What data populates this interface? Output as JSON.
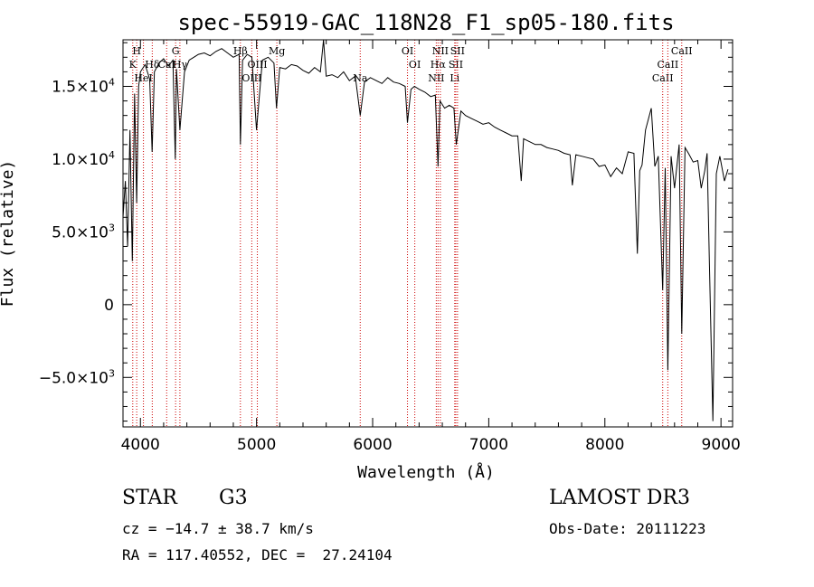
{
  "chart_data": {
    "type": "line",
    "title": "spec-55919-GAC_118N28_F1_sp05-180.fits",
    "xlabel": "Wavelength (Å)",
    "ylabel": "Flux (relative)",
    "xlim": [
      3850,
      9100
    ],
    "ylim": [
      -8400,
      18200
    ],
    "x_ticks": [
      {
        "value": 4000,
        "label": "4000"
      },
      {
        "value": 5000,
        "label": "5000"
      },
      {
        "value": 6000,
        "label": "6000"
      },
      {
        "value": 7000,
        "label": "7000"
      },
      {
        "value": 8000,
        "label": "8000"
      },
      {
        "value": 9000,
        "label": "9000"
      }
    ],
    "y_ticks": [
      {
        "value": -5000,
        "label": "−5.0×10",
        "exp": "3"
      },
      {
        "value": 0,
        "label": "0",
        "exp": ""
      },
      {
        "value": 5000,
        "label": "5.0×10",
        "exp": "3"
      },
      {
        "value": 10000,
        "label": "1.0×10",
        "exp": "4"
      },
      {
        "value": 15000,
        "label": "1.5×10",
        "exp": "4"
      }
    ],
    "series": [
      {
        "name": "spectrum",
        "color": "#000000",
        "x": [
          3850,
          3870,
          3890,
          3910,
          3930,
          3950,
          3968,
          3985,
          4000,
          4040,
          4080,
          4101,
          4120,
          4160,
          4200,
          4240,
          4280,
          4300,
          4310,
          4340,
          4380,
          4420,
          4460,
          4500,
          4550,
          4600,
          4650,
          4700,
          4750,
          4800,
          4850,
          4861,
          4880,
          4920,
          4960,
          5000,
          5050,
          5100,
          5150,
          5172,
          5200,
          5250,
          5300,
          5350,
          5400,
          5450,
          5500,
          5550,
          5577,
          5600,
          5650,
          5700,
          5750,
          5800,
          5850,
          5893,
          5930,
          5980,
          6030,
          6080,
          6130,
          6180,
          6230,
          6280,
          6300,
          6330,
          6360,
          6400,
          6450,
          6500,
          6540,
          6563,
          6580,
          6620,
          6660,
          6700,
          6720,
          6760,
          6800,
          6850,
          6900,
          6950,
          7000,
          7050,
          7100,
          7150,
          7200,
          7250,
          7280,
          7300,
          7350,
          7400,
          7450,
          7500,
          7550,
          7600,
          7650,
          7700,
          7720,
          7750,
          7800,
          7850,
          7900,
          7950,
          8000,
          8050,
          8100,
          8150,
          8200,
          8250,
          8280,
          8300,
          8320,
          8350,
          8400,
          8430,
          8460,
          8498,
          8520,
          8542,
          8570,
          8600,
          8640,
          8662,
          8690,
          8720,
          8760,
          8800,
          8830,
          8860,
          8880,
          8900,
          8930,
          8960,
          8990,
          9030,
          9060
        ],
        "y": [
          6000,
          8500,
          4000,
          12000,
          3000,
          14500,
          7000,
          15000,
          16000,
          16500,
          15500,
          10500,
          16000,
          16600,
          16900,
          16400,
          16800,
          10000,
          16200,
          12000,
          16000,
          16800,
          17000,
          17200,
          17300,
          17100,
          17400,
          17600,
          17300,
          17000,
          17200,
          11000,
          16800,
          17200,
          17000,
          12000,
          16800,
          17000,
          16600,
          13500,
          16300,
          16200,
          16500,
          16400,
          16100,
          15900,
          16300,
          16000,
          19000,
          15700,
          15800,
          15600,
          16000,
          15400,
          15700,
          13000,
          15300,
          15600,
          15400,
          15200,
          15600,
          15300,
          15200,
          15000,
          12500,
          14800,
          15000,
          14800,
          14600,
          14300,
          14400,
          9500,
          14000,
          13500,
          13700,
          13500,
          11000,
          13300,
          13000,
          12800,
          12600,
          12400,
          12500,
          12200,
          12000,
          11800,
          11600,
          11600,
          8500,
          11400,
          11200,
          11000,
          11000,
          10800,
          10700,
          10600,
          10400,
          10300,
          8200,
          10300,
          10200,
          10100,
          10000,
          9500,
          9600,
          8800,
          9400,
          9000,
          10500,
          10400,
          3500,
          9200,
          9600,
          12000,
          13500,
          9500,
          10200,
          1000,
          9400,
          -4500,
          10200,
          8000,
          11000,
          -2000,
          10800,
          10400,
          9800,
          9900,
          8000,
          9200,
          10400,
          3000,
          -8000,
          9000,
          10200,
          8500,
          9300
        ]
      }
    ],
    "line_color": "#cc0000",
    "lines": [
      {
        "x": 3934,
        "label": "K",
        "row": 1
      },
      {
        "x": 3968,
        "label": "H",
        "row": 0
      },
      {
        "x": 4026,
        "label": "HeI",
        "row": 2
      },
      {
        "x": 4102,
        "label": "Hδ",
        "row": 1
      },
      {
        "x": 4226,
        "label": "CaI",
        "row": 1
      },
      {
        "x": 4303,
        "label": "G",
        "row": 0
      },
      {
        "x": 4340,
        "label": "Hγ",
        "row": 1
      },
      {
        "x": 4861,
        "label": "Hβ",
        "row": 0
      },
      {
        "x": 4959,
        "label": "OIII",
        "row": 2
      },
      {
        "x": 5007,
        "label": "OIII",
        "row": 1
      },
      {
        "x": 5175,
        "label": "Mg",
        "row": 0
      },
      {
        "x": 5893,
        "label": "Na",
        "row": 2
      },
      {
        "x": 6300,
        "label": "OI",
        "row": 0
      },
      {
        "x": 6363,
        "label": "OI",
        "row": 1
      },
      {
        "x": 6548,
        "label": "NII",
        "row": 2
      },
      {
        "x": 6563,
        "label": "Hα",
        "row": 1
      },
      {
        "x": 6583,
        "label": "NII",
        "row": 0
      },
      {
        "x": 6707,
        "label": "Li",
        "row": 2
      },
      {
        "x": 6716,
        "label": "SII",
        "row": 1
      },
      {
        "x": 6731,
        "label": "SII",
        "row": 0
      },
      {
        "x": 8498,
        "label": "CaII",
        "row": 2
      },
      {
        "x": 8542,
        "label": "CaII",
        "row": 1
      },
      {
        "x": 8662,
        "label": "CaII",
        "row": 0
      }
    ]
  },
  "info": {
    "object_class": "STAR",
    "subclass": "G3",
    "cz": "cz = −14.7 ± 38.7 km/s",
    "coords": "RA = 117.40552, DEC =  27.24104",
    "survey": "LAMOST DR3",
    "obs_date": "Obs-Date: 20111223"
  }
}
